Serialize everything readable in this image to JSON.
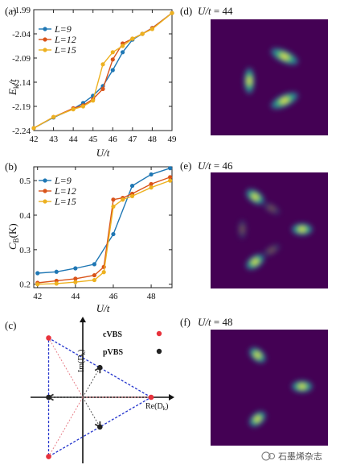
{
  "chart_data": [
    {
      "panel": "(a)",
      "type": "line",
      "ylabel_main": "E",
      "ylabel_sub": "k",
      "ylabel_tail": "/t",
      "xlabel": "U/t",
      "xlim": [
        42,
        49
      ],
      "ylim": [
        -2.24,
        -1.99
      ],
      "xticks": [
        "42",
        "43",
        "44",
        "45",
        "46",
        "47",
        "48",
        "49"
      ],
      "yticks": [
        "-1.99",
        "-2.04",
        "-2.09",
        "-2.14",
        "-2.19",
        "-2.24"
      ],
      "legend": "top-left",
      "series": [
        {
          "name": "L=9",
          "color": "#1f77b4",
          "x": [
            42,
            43,
            44,
            44.5,
            45,
            45.5,
            46,
            46.5,
            47,
            47.5,
            48,
            49
          ],
          "y": [
            -2.235,
            -2.213,
            -2.195,
            -2.183,
            -2.168,
            -2.148,
            -2.115,
            -2.078,
            -2.052,
            -2.04,
            -2.028,
            -1.997
          ]
        },
        {
          "name": "L=12",
          "color": "#d95319",
          "x": [
            42,
            43,
            44,
            44.5,
            45,
            45.5,
            46,
            46.5,
            47,
            47.5,
            48,
            49
          ],
          "y": [
            -2.235,
            -2.212,
            -2.194,
            -2.188,
            -2.175,
            -2.154,
            -2.093,
            -2.06,
            -2.05,
            -2.04,
            -2.028,
            -1.997
          ]
        },
        {
          "name": "L=15",
          "color": "#edb120",
          "x": [
            42,
            43,
            44,
            44.5,
            45,
            45.5,
            46,
            46.5,
            47,
            47.5,
            48,
            49
          ],
          "y": [
            -2.235,
            -2.212,
            -2.196,
            -2.19,
            -2.178,
            -2.103,
            -2.078,
            -2.065,
            -2.05,
            -2.04,
            -2.03,
            -1.997
          ]
        }
      ]
    },
    {
      "panel": "(b)",
      "type": "line",
      "ylabel_main": "C",
      "ylabel_sub": "B",
      "ylabel_tail": "(K)",
      "xlabel": "U/t",
      "xlim": [
        41.8,
        49.1
      ],
      "ylim": [
        0.19,
        0.54
      ],
      "xticks": [
        "42",
        "44",
        "46",
        "48"
      ],
      "yticks": [
        "0.5",
        "0.4",
        "0.3",
        "0.2"
      ],
      "legend": "top-left",
      "series": [
        {
          "name": "L=9",
          "color": "#1f77b4",
          "x": [
            42,
            43,
            44,
            45,
            46,
            47,
            48,
            49
          ],
          "y": [
            0.232,
            0.236,
            0.246,
            0.258,
            0.345,
            0.485,
            0.518,
            0.536
          ]
        },
        {
          "name": "L=12",
          "color": "#d95319",
          "x": [
            42,
            43,
            44,
            45,
            45.5,
            46,
            46.5,
            47,
            48,
            49
          ],
          "y": [
            0.204,
            0.21,
            0.216,
            0.226,
            0.25,
            0.445,
            0.45,
            0.462,
            0.49,
            0.51
          ]
        },
        {
          "name": "L=15",
          "color": "#edb120",
          "x": [
            42,
            43,
            44,
            45,
            45.5,
            46,
            46.5,
            47,
            48,
            49
          ],
          "y": [
            0.2,
            0.202,
            0.206,
            0.212,
            0.235,
            0.425,
            0.445,
            0.455,
            0.48,
            0.5
          ]
        }
      ]
    },
    {
      "panel": "(c)",
      "type": "scatter",
      "xlabel_main": "Re(D",
      "xlabel_sub": "k",
      "xlabel_tail": ")",
      "ylabel_main": "Im(D",
      "ylabel_sub": "k",
      "ylabel_tail": ")",
      "legend_cvbs": "cVBS",
      "legend_pvbs": "pVBS",
      "cvbs_color": "#e8323c",
      "pvbs_color": "#222222",
      "triangle_color": "#2233cc",
      "xlim": [
        -1,
        1.2
      ],
      "ylim": [
        -1.2,
        1.2
      ],
      "cvbs_points": [
        [
          0.85,
          0
        ],
        [
          -0.425,
          0.736
        ],
        [
          -0.425,
          -0.736
        ]
      ],
      "pvbs_points": [
        [
          -0.425,
          0
        ],
        [
          0.213,
          0.368
        ],
        [
          0.213,
          -0.368
        ]
      ]
    },
    {
      "panel": "(d)",
      "type": "heatmap",
      "title_main": "U/t",
      "title_tail": " = 44",
      "background": "#440154",
      "blobs": [
        {
          "cx": 0.63,
          "cy": 0.32,
          "rx": 0.17,
          "ry": 0.07,
          "rot": 25,
          "strength": 1.0
        },
        {
          "cx": 0.33,
          "cy": 0.53,
          "rx": 0.06,
          "ry": 0.15,
          "rot": 0,
          "strength": 1.0
        },
        {
          "cx": 0.63,
          "cy": 0.7,
          "rx": 0.17,
          "ry": 0.07,
          "rot": -25,
          "strength": 1.0
        }
      ]
    },
    {
      "panel": "(e)",
      "type": "heatmap",
      "title_main": "U/t",
      "title_tail": " = 46",
      "background": "#440154",
      "blobs": [
        {
          "cx": 0.38,
          "cy": 0.21,
          "rx": 0.12,
          "ry": 0.07,
          "rot": 35,
          "strength": 1.0
        },
        {
          "cx": 0.78,
          "cy": 0.49,
          "rx": 0.12,
          "ry": 0.07,
          "rot": 0,
          "strength": 1.0
        },
        {
          "cx": 0.38,
          "cy": 0.77,
          "rx": 0.12,
          "ry": 0.07,
          "rot": -35,
          "strength": 1.0
        },
        {
          "cx": 0.52,
          "cy": 0.31,
          "rx": 0.11,
          "ry": 0.05,
          "rot": 30,
          "strength": 0.35
        },
        {
          "cx": 0.27,
          "cy": 0.49,
          "rx": 0.05,
          "ry": 0.11,
          "rot": 0,
          "strength": 0.35
        },
        {
          "cx": 0.52,
          "cy": 0.67,
          "rx": 0.11,
          "ry": 0.05,
          "rot": -30,
          "strength": 0.35
        }
      ]
    },
    {
      "panel": "(f)",
      "type": "heatmap",
      "title_main": "U/t",
      "title_tail": " = 48",
      "background": "#440154",
      "blobs": [
        {
          "cx": 0.4,
          "cy": 0.22,
          "rx": 0.11,
          "ry": 0.07,
          "rot": 40,
          "strength": 1.0
        },
        {
          "cx": 0.78,
          "cy": 0.49,
          "rx": 0.12,
          "ry": 0.07,
          "rot": 0,
          "strength": 1.0
        },
        {
          "cx": 0.4,
          "cy": 0.77,
          "rx": 0.11,
          "ry": 0.07,
          "rot": -40,
          "strength": 1.0
        }
      ]
    }
  ],
  "watermark": "石墨烯杂志"
}
